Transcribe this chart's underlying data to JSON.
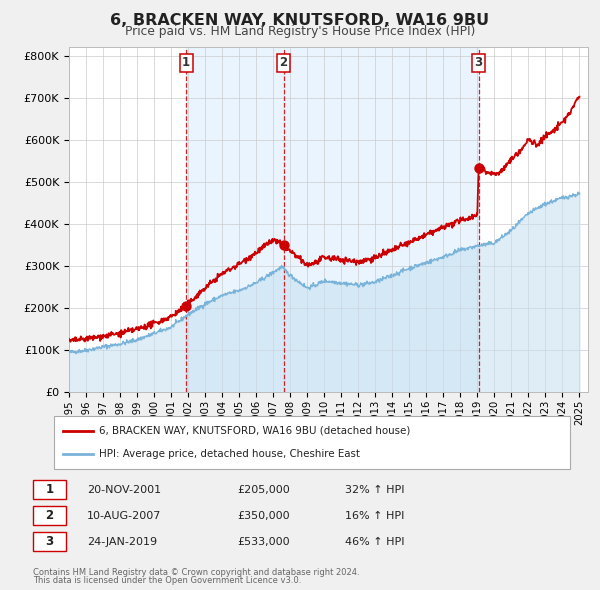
{
  "title": "6, BRACKEN WAY, KNUTSFORD, WA16 9BU",
  "subtitle": "Price paid vs. HM Land Registry's House Price Index (HPI)",
  "hpi_color": "#7ab3d9",
  "hpi_fill_color": "#c5dff0",
  "price_color": "#cc0000",
  "sale_dot_color": "#cc0000",
  "vline_color": "#cc0000",
  "vshade_color": "#ddeeff",
  "background_color": "#f0f0f0",
  "plot_bg_color": "#ffffff",
  "ylim": [
    0,
    820000
  ],
  "yticks": [
    0,
    100000,
    200000,
    300000,
    400000,
    500000,
    600000,
    700000,
    800000
  ],
  "ytick_labels": [
    "£0",
    "£100K",
    "£200K",
    "£300K",
    "£400K",
    "£500K",
    "£600K",
    "£700K",
    "£800K"
  ],
  "sales": [
    {
      "label": "1",
      "date_num": 2001.89,
      "price": 205000,
      "date_str": "20-NOV-2001",
      "pct_str": "32% ↑ HPI"
    },
    {
      "label": "2",
      "date_num": 2007.61,
      "price": 350000,
      "date_str": "10-AUG-2007",
      "pct_str": "16% ↑ HPI"
    },
    {
      "label": "3",
      "date_num": 2019.07,
      "price": 533000,
      "date_str": "24-JAN-2019",
      "pct_str": "46% ↑ HPI"
    }
  ],
  "legend_property_label": "6, BRACKEN WAY, KNUTSFORD, WA16 9BU (detached house)",
  "legend_hpi_label": "HPI: Average price, detached house, Cheshire East",
  "footer1": "Contains HM Land Registry data © Crown copyright and database right 2024.",
  "footer2": "This data is licensed under the Open Government Licence v3.0.",
  "xmin": 1995.0,
  "xmax": 2025.5,
  "xticks": [
    1995,
    1996,
    1997,
    1998,
    1999,
    2000,
    2001,
    2002,
    2003,
    2004,
    2005,
    2006,
    2007,
    2008,
    2009,
    2010,
    2011,
    2012,
    2013,
    2014,
    2015,
    2016,
    2017,
    2018,
    2019,
    2020,
    2021,
    2022,
    2023,
    2024,
    2025
  ]
}
